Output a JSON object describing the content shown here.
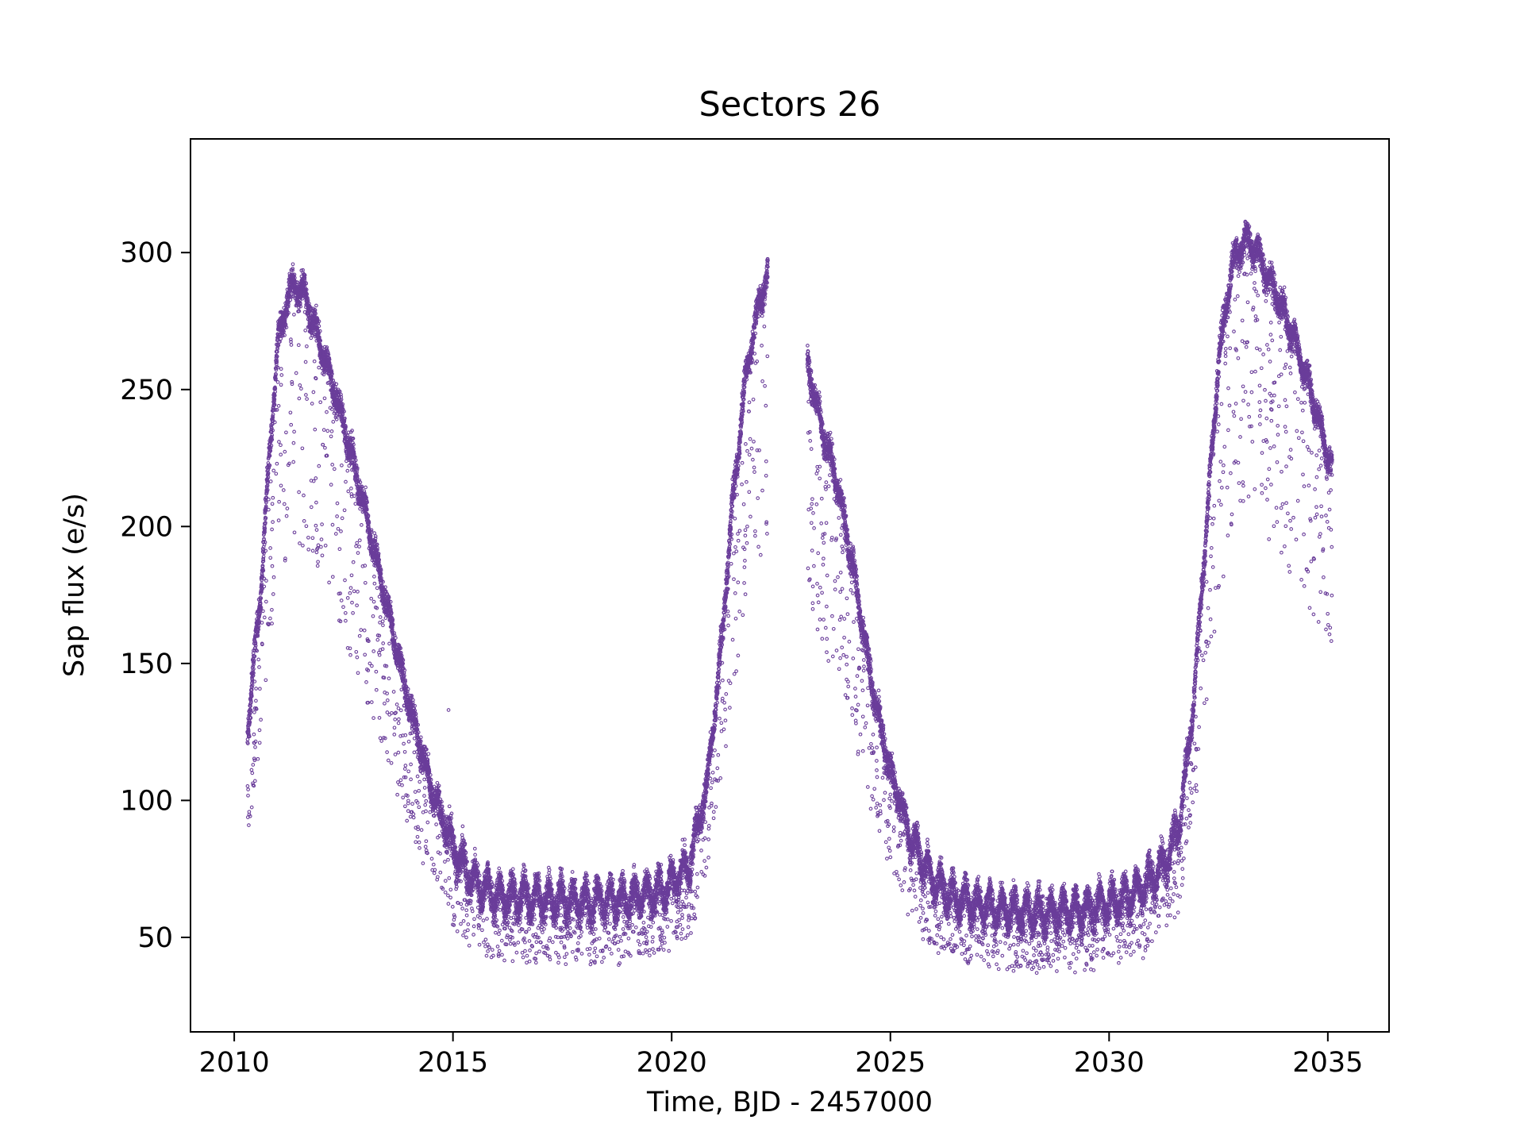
{
  "chart_data": {
    "type": "scatter",
    "title": "Sectors 26",
    "xlabel": "Time, BJD - 2457000",
    "ylabel": "Sap flux (e/s)",
    "xlim": [
      2009.0,
      2036.4
    ],
    "ylim": [
      15.5,
      341.5
    ],
    "xticks": [
      2010,
      2015,
      2020,
      2025,
      2030,
      2035
    ],
    "yticks": [
      50,
      100,
      150,
      200,
      250,
      300
    ],
    "grid": false,
    "legend": "none",
    "marker": "hollow-circle",
    "color": "#6a3d9a",
    "series": [
      {
        "segments": [
          {
            "x_range": [
              2010.3,
              2022.2
            ],
            "curve": [
              [
                2010.3,
                125
              ],
              [
                2010.6,
                175
              ],
              [
                2010.8,
                225
              ],
              [
                2011.0,
                268
              ],
              [
                2011.3,
                288
              ],
              [
                2011.6,
                285
              ],
              [
                2012.0,
                265
              ],
              [
                2012.5,
                238
              ],
              [
                2013.0,
                205
              ],
              [
                2013.5,
                170
              ],
              [
                2014.0,
                135
              ],
              [
                2014.5,
                105
              ],
              [
                2015.0,
                83
              ],
              [
                2015.5,
                70
              ],
              [
                2016.0,
                65
              ],
              [
                2017.0,
                64
              ],
              [
                2018.0,
                63
              ],
              [
                2019.0,
                64
              ],
              [
                2019.8,
                67
              ],
              [
                2020.4,
                76
              ],
              [
                2020.8,
                105
              ],
              [
                2021.1,
                150
              ],
              [
                2021.4,
                210
              ],
              [
                2021.7,
                255
              ],
              [
                2022.0,
                282
              ],
              [
                2022.2,
                292
              ]
            ]
          },
          {
            "x_range": [
              2023.1,
              2035.1
            ],
            "curve": [
              [
                2023.1,
                260
              ],
              [
                2023.4,
                238
              ],
              [
                2023.8,
                215
              ],
              [
                2024.2,
                180
              ],
              [
                2024.6,
                140
              ],
              [
                2025.0,
                110
              ],
              [
                2025.5,
                85
              ],
              [
                2026.0,
                70
              ],
              [
                2026.5,
                64
              ],
              [
                2027.5,
                60
              ],
              [
                2028.5,
                59
              ],
              [
                2029.5,
                60
              ],
              [
                2030.5,
                65
              ],
              [
                2031.2,
                75
              ],
              [
                2031.6,
                90
              ],
              [
                2031.9,
                130
              ],
              [
                2032.2,
                195
              ],
              [
                2032.5,
                260
              ],
              [
                2032.8,
                295
              ],
              [
                2033.1,
                305
              ],
              [
                2033.4,
                300
              ],
              [
                2033.8,
                285
              ],
              [
                2034.2,
                270
              ],
              [
                2034.6,
                250
              ],
              [
                2035.1,
                220
              ]
            ]
          }
        ],
        "outliers": [
          [
            2014.9,
            133
          ]
        ]
      }
    ]
  }
}
